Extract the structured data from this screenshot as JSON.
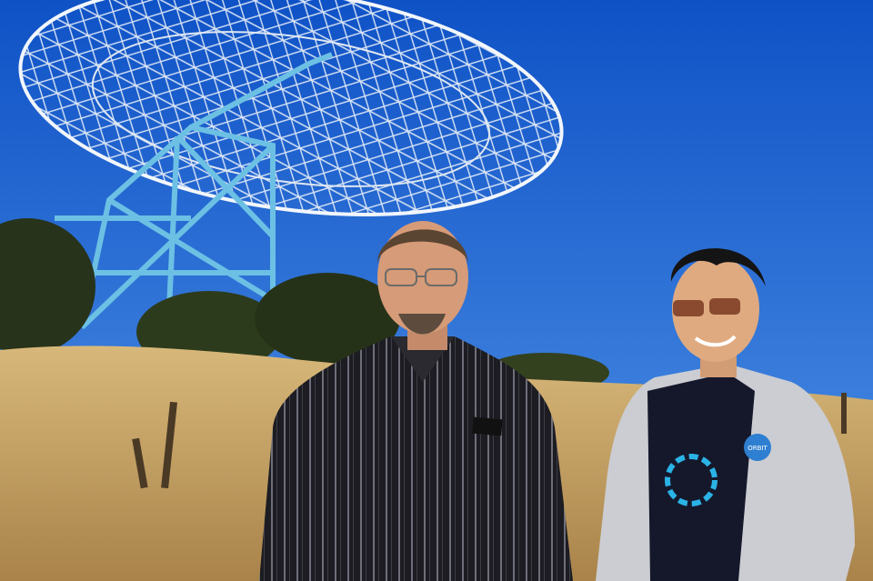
{
  "scene": {
    "sky_top": "#0f52c6",
    "sky_bottom": "#4f92e6",
    "grass": "#c9a35f",
    "grass_dark": "#8a6a3a",
    "tree": "#2e3a1c",
    "dish_frame": "#e8eef6",
    "tower": "#5fb4dc",
    "shirt_left": "#1c1c22",
    "stripe": "#8a8a96",
    "hoodie": "#c9cbd0",
    "tshirt": "#13162a",
    "logo_ring": "#2bb3e6"
  },
  "shirt_badge": {
    "text": "ORBIT",
    "fill": "#2e7fd1"
  }
}
